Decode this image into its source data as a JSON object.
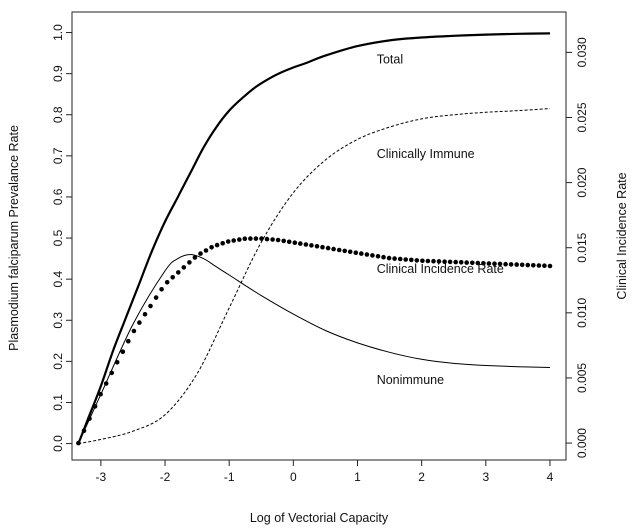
{
  "chart_data": {
    "type": "line",
    "title": "",
    "xlabel": "Log of Vectorial Capacity",
    "ylabel": "Plasmodium falciparum Prevalance Rate",
    "y2label": "Clinical Incidence Rate",
    "xlim": [
      -3.45,
      4.25
    ],
    "ylim": [
      -0.04,
      1.05
    ],
    "y2lim": [
      -0.0013,
      0.0331
    ],
    "x_ticks": [
      -3,
      -2,
      -1,
      0,
      1,
      2,
      3,
      4
    ],
    "x_tick_labels": [
      "-3",
      "-2",
      "-1",
      "0",
      "1",
      "2",
      "3",
      "4"
    ],
    "y_ticks": [
      0.0,
      0.1,
      0.2,
      0.3,
      0.4,
      0.5,
      0.6,
      0.7,
      0.8,
      0.9,
      1.0
    ],
    "y_tick_labels": [
      "0.0",
      "0.1",
      "0.2",
      "0.3",
      "0.4",
      "0.5",
      "0.6",
      "0.7",
      "0.8",
      "0.9",
      "1.0"
    ],
    "y2_ticks": [
      0.0,
      0.005,
      0.01,
      0.015,
      0.02,
      0.025,
      0.03
    ],
    "y2_tick_labels": [
      "0.000",
      "0.005",
      "0.010",
      "0.015",
      "0.020",
      "0.025",
      "0.030"
    ],
    "grid": false,
    "series": [
      {
        "name": "Total",
        "style": "thick-solid",
        "axis": "left",
        "x": [
          -3.35,
          -3.2,
          -3.0,
          -2.8,
          -2.6,
          -2.4,
          -2.2,
          -2.0,
          -1.8,
          -1.6,
          -1.4,
          -1.2,
          -1.0,
          -0.8,
          -0.6,
          -0.4,
          -0.2,
          0.0,
          0.2,
          0.5,
          1.0,
          1.5,
          2.0,
          2.5,
          3.0,
          3.5,
          4.0
        ],
        "y": [
          0.0,
          0.06,
          0.14,
          0.23,
          0.31,
          0.39,
          0.47,
          0.54,
          0.6,
          0.66,
          0.72,
          0.77,
          0.81,
          0.84,
          0.866,
          0.886,
          0.902,
          0.915,
          0.926,
          0.944,
          0.967,
          0.981,
          0.988,
          0.992,
          0.995,
          0.997,
          0.998
        ]
      },
      {
        "name": "Clinically Immune",
        "style": "dashed",
        "axis": "left",
        "x": [
          -3.35,
          -3.0,
          -2.5,
          -2.0,
          -1.5,
          -1.0,
          -0.5,
          0.0,
          0.5,
          1.0,
          1.5,
          2.0,
          2.5,
          3.0,
          3.5,
          4.0
        ],
        "y": [
          0.0,
          0.01,
          0.03,
          0.07,
          0.17,
          0.33,
          0.49,
          0.61,
          0.69,
          0.74,
          0.77,
          0.79,
          0.8,
          0.806,
          0.81,
          0.815
        ]
      },
      {
        "name": "Nonimmune",
        "style": "thin-solid",
        "axis": "left",
        "x": [
          -3.35,
          -3.0,
          -2.5,
          -2.0,
          -1.8,
          -1.6,
          -1.4,
          -1.2,
          -1.0,
          -0.5,
          0.0,
          0.5,
          1.0,
          1.5,
          2.0,
          2.5,
          3.0,
          3.5,
          4.0
        ],
        "y": [
          0.0,
          0.12,
          0.29,
          0.42,
          0.45,
          0.46,
          0.45,
          0.43,
          0.41,
          0.36,
          0.315,
          0.275,
          0.245,
          0.222,
          0.205,
          0.195,
          0.19,
          0.187,
          0.185
        ]
      },
      {
        "name": "Clinical Incidence Rate",
        "style": "dotted-points",
        "axis": "right",
        "x": [
          -3.35,
          -3.0,
          -2.5,
          -2.0,
          -1.5,
          -1.25,
          -1.0,
          -0.75,
          -0.5,
          -0.25,
          0.0,
          0.25,
          0.5,
          1.0,
          1.5,
          2.0,
          2.5,
          3.0,
          3.5,
          4.0
        ],
        "y": [
          0.0,
          0.0038,
          0.0085,
          0.0122,
          0.0144,
          0.0151,
          0.0155,
          0.0157,
          0.0157,
          0.0156,
          0.0154,
          0.0152,
          0.015,
          0.0146,
          0.0142,
          0.014,
          0.0139,
          0.0138,
          0.0137,
          0.0136
        ]
      }
    ],
    "annotations": [
      {
        "text": "Total",
        "x": 1.3,
        "y": 0.925
      },
      {
        "text": "Clinically Immune",
        "x": 1.3,
        "y": 0.695
      },
      {
        "text": "Clinical Incidence Rate",
        "x": 1.3,
        "y": 0.415
      },
      {
        "text": "Nonimmune",
        "x": 1.3,
        "y": 0.145
      }
    ]
  }
}
